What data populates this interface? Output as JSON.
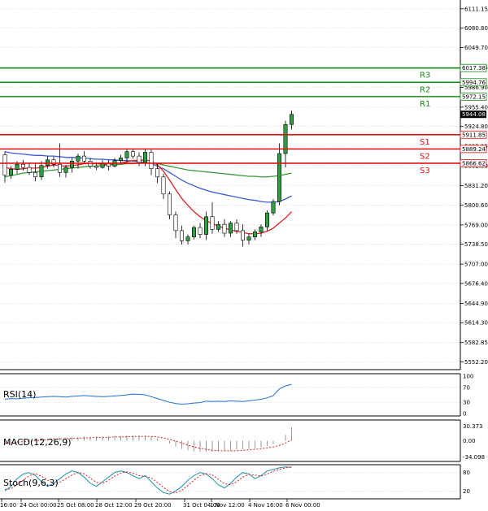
{
  "chart_data": {
    "type": "candlestick",
    "main": {
      "ylim": [
        5540,
        6125
      ],
      "y_ticks": [
        "6111.15",
        "6080.80",
        "6049.70",
        "6018.55",
        "5986.90",
        "5955.40",
        "5924.80",
        "5893.85",
        "5862.90",
        "5831.20",
        "5800.60",
        "5769.00",
        "5738.50",
        "5707.00",
        "5676.40",
        "5644.90",
        "5614.30",
        "5582.85",
        "5552.20"
      ],
      "x_ticks": [
        "16:00",
        "24 Oct 00:00",
        "25 Oct 08:00",
        "28 Oct 12:00",
        "29 Oct 20:00",
        "31 Oct 04:00",
        "1 Nov 12:00",
        "4 Nov 16:00",
        "6 Nov 00:00"
      ],
      "candles": [
        [
          5880,
          5885,
          5836,
          5848
        ],
        [
          5848,
          5862,
          5842,
          5857
        ],
        [
          5857,
          5870,
          5850,
          5865
        ],
        [
          5865,
          5872,
          5855,
          5860
        ],
        [
          5860,
          5868,
          5848,
          5852
        ],
        [
          5852,
          5866,
          5838,
          5845
        ],
        [
          5845,
          5870,
          5840,
          5863
        ],
        [
          5863,
          5878,
          5858,
          5872
        ],
        [
          5872,
          5877,
          5860,
          5865
        ],
        [
          5865,
          5898,
          5845,
          5852
        ],
        [
          5852,
          5864,
          5844,
          5860
        ],
        [
          5860,
          5875,
          5852,
          5870
        ],
        [
          5870,
          5882,
          5858,
          5878
        ],
        [
          5878,
          5886,
          5866,
          5870
        ],
        [
          5870,
          5875,
          5858,
          5862
        ],
        [
          5862,
          5868,
          5856,
          5860
        ],
        [
          5860,
          5872,
          5858,
          5866
        ],
        [
          5866,
          5872,
          5855,
          5862
        ],
        [
          5862,
          5875,
          5860,
          5871
        ],
        [
          5871,
          5880,
          5865,
          5875
        ],
        [
          5875,
          5890,
          5868,
          5885
        ],
        [
          5885,
          5889,
          5874,
          5878
        ],
        [
          5878,
          5884,
          5862,
          5868
        ],
        [
          5868,
          5890,
          5862,
          5884
        ],
        [
          5884,
          5888,
          5848,
          5858
        ],
        [
          5858,
          5866,
          5835,
          5845
        ],
        [
          5845,
          5850,
          5810,
          5818
        ],
        [
          5818,
          5822,
          5778,
          5785
        ],
        [
          5785,
          5790,
          5748,
          5760
        ],
        [
          5760,
          5768,
          5738,
          5744
        ],
        [
          5744,
          5754,
          5738,
          5750
        ],
        [
          5750,
          5768,
          5746,
          5765
        ],
        [
          5765,
          5772,
          5748,
          5754
        ],
        [
          5754,
          5790,
          5745,
          5782
        ],
        [
          5782,
          5805,
          5755,
          5762
        ],
        [
          5762,
          5775,
          5758,
          5770
        ],
        [
          5770,
          5778,
          5750,
          5756
        ],
        [
          5756,
          5775,
          5750,
          5772
        ],
        [
          5772,
          5778,
          5755,
          5760
        ],
        [
          5760,
          5770,
          5735,
          5745
        ],
        [
          5745,
          5755,
          5738,
          5750
        ],
        [
          5750,
          5762,
          5745,
          5758
        ],
        [
          5758,
          5770,
          5750,
          5766
        ],
        [
          5766,
          5792,
          5760,
          5788
        ],
        [
          5788,
          5810,
          5784,
          5806
        ],
        [
          5806,
          5898,
          5800,
          5882
        ],
        [
          5882,
          5934,
          5860,
          5928
        ],
        [
          5928,
          5950,
          5920,
          5944
        ]
      ],
      "series": [
        {
          "name": "",
          "color": "#3b5bd9",
          "values": [
            5885,
            5883,
            5882,
            5881,
            5880,
            5879,
            5879,
            5878,
            5878,
            5877,
            5876,
            5876,
            5875,
            5875,
            5874,
            5873,
            5873,
            5872,
            5872,
            5871,
            5871,
            5870,
            5869,
            5868,
            5866,
            5862,
            5858,
            5852,
            5846,
            5840,
            5835,
            5831,
            5827,
            5824,
            5821,
            5819,
            5817,
            5815,
            5813,
            5811,
            5809,
            5808,
            5806,
            5805,
            5805,
            5806,
            5810,
            5815
          ]
        },
        {
          "name": "",
          "color": "#3a9a3a",
          "values": [
            5845,
            5847,
            5849,
            5851,
            5852,
            5853,
            5854,
            5855,
            5856,
            5857,
            5858,
            5859,
            5860,
            5861,
            5862,
            5862,
            5863,
            5864,
            5864,
            5865,
            5866,
            5866,
            5867,
            5867,
            5867,
            5866,
            5864,
            5862,
            5860,
            5858,
            5856,
            5855,
            5854,
            5853,
            5852,
            5851,
            5850,
            5849,
            5848,
            5847,
            5846,
            5846,
            5845,
            5845,
            5846,
            5847,
            5849,
            5851
          ]
        },
        {
          "name": "",
          "color": "#e02020",
          "values": [
            5860,
            5858,
            5857,
            5858,
            5859,
            5859,
            5860,
            5862,
            5864,
            5863,
            5862,
            5863,
            5864,
            5866,
            5866,
            5866,
            5865,
            5865,
            5866,
            5867,
            5869,
            5871,
            5871,
            5872,
            5870,
            5864,
            5854,
            5840,
            5825,
            5811,
            5800,
            5790,
            5782,
            5776,
            5771,
            5767,
            5764,
            5761,
            5759,
            5757,
            5755,
            5755,
            5756,
            5759,
            5764,
            5772,
            5780,
            5790
          ]
        }
      ],
      "levels": [
        {
          "label": "R3",
          "value": 6017.38,
          "color": "#1a8a1a"
        },
        {
          "label": "R2",
          "value": 5994.76,
          "color": "#1a8a1a"
        },
        {
          "label": "R1",
          "value": 5972.15,
          "color": "#1a8a1a"
        },
        {
          "label": "S1",
          "value": 5911.85,
          "color": "#e01010"
        },
        {
          "label": "S2",
          "value": 5889.24,
          "color": "#e01010"
        },
        {
          "label": "S3",
          "value": 5866.62,
          "color": "#e01010"
        }
      ],
      "last_price": "5944.08",
      "level_tags": [
        "6017.38",
        "5994.76",
        "5972.15",
        "5911.85",
        "5889.24",
        "5866.62"
      ]
    },
    "rsi": {
      "label": "RSI(14)",
      "ylim": [
        0,
        100
      ],
      "y_ticks": [
        "100",
        "70",
        "30",
        "0"
      ],
      "color": "#1f6fd8",
      "values": [
        38,
        40,
        39,
        41,
        42,
        43,
        44,
        45,
        46,
        45,
        44,
        46,
        47,
        48,
        47,
        46,
        45,
        46,
        47,
        48,
        50,
        52,
        51,
        50,
        45,
        40,
        35,
        30,
        27,
        25,
        26,
        28,
        29,
        33,
        32,
        33,
        32,
        34,
        33,
        32,
        34,
        36,
        38,
        42,
        48,
        66,
        74,
        78
      ]
    },
    "macd": {
      "label": "MACD(12,26,9)",
      "ylim": [
        -40,
        40
      ],
      "y_ticks": [
        "30.373",
        "0.00",
        "-34.098"
      ],
      "histogram": [
        -2,
        -1,
        0,
        1,
        2,
        3,
        4,
        5,
        6,
        7,
        7,
        8,
        8,
        9,
        9,
        9,
        9,
        10,
        10,
        10,
        11,
        11,
        11,
        11,
        9,
        5,
        0,
        -6,
        -12,
        -17,
        -20,
        -22,
        -23,
        -23,
        -23,
        -22,
        -21,
        -20,
        -19,
        -18,
        -17,
        -16,
        -14,
        -11,
        -7,
        0,
        12,
        28
      ],
      "signal": [
        -5,
        -4,
        -3,
        -2,
        -1,
        0,
        1,
        2,
        3,
        4,
        4,
        5,
        5,
        6,
        6,
        7,
        7,
        7,
        8,
        8,
        8,
        9,
        9,
        9,
        9,
        8,
        6,
        3,
        -1,
        -5,
        -9,
        -13,
        -16,
        -18,
        -20,
        -21,
        -21,
        -21,
        -21,
        -20,
        -19,
        -18,
        -17,
        -15,
        -13,
        -10,
        -5,
        2
      ]
    },
    "stoch": {
      "label": "Stoch(9,6,3)",
      "ylim": [
        0,
        100
      ],
      "y_ticks": [
        "80",
        "20"
      ],
      "main_color": "#1f8fb0",
      "signal_color": "#e02020",
      "main": [
        20,
        35,
        60,
        75,
        80,
        70,
        50,
        35,
        45,
        60,
        75,
        85,
        80,
        65,
        45,
        35,
        50,
        65,
        80,
        85,
        80,
        70,
        60,
        70,
        50,
        30,
        15,
        10,
        20,
        35,
        55,
        70,
        80,
        75,
        60,
        40,
        30,
        45,
        65,
        80,
        75,
        60,
        70,
        85,
        90,
        95,
        98,
        97
      ],
      "signal": [
        25,
        28,
        40,
        55,
        70,
        76,
        68,
        55,
        45,
        48,
        60,
        72,
        80,
        76,
        62,
        48,
        45,
        55,
        68,
        78,
        82,
        78,
        70,
        68,
        62,
        48,
        32,
        18,
        14,
        22,
        38,
        55,
        70,
        76,
        72,
        58,
        44,
        40,
        50,
        65,
        74,
        72,
        68,
        75,
        84,
        90,
        95,
        97
      ]
    }
  }
}
